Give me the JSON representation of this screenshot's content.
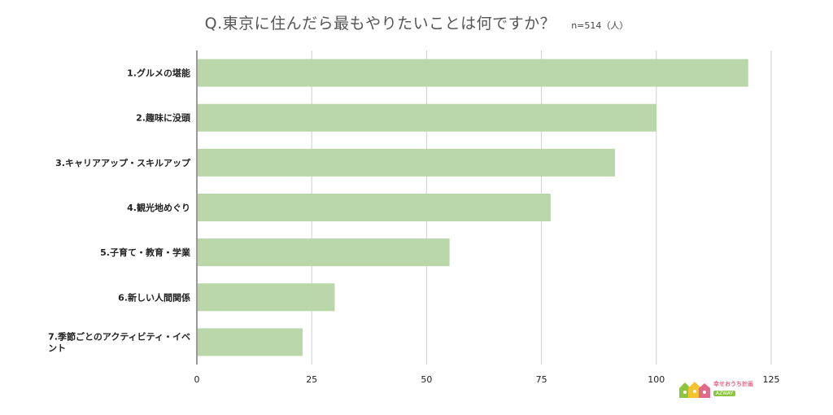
{
  "header": {
    "question": "Q.東京に住んだら最もやりたいことは何ですか？",
    "sample": "n=514（人）"
  },
  "logo": {
    "line1": "幸せおうち計画",
    "line2": "AZWAY"
  },
  "colors": {
    "bar": "#b9d7a8",
    "grid": "#cfcfcf",
    "axis": "#333333"
  },
  "chart_data": {
    "type": "bar",
    "orientation": "horizontal",
    "title": "Q.東京に住んだら最もやりたいことは何ですか？",
    "categories": [
      "1.グルメの堪能",
      "2.趣味に没頭",
      "3.キャリアアップ・スキルアップ",
      "4.観光地めぐり",
      "5.子育て・教育・学業",
      "6.新しい人間関係",
      "7.季節ごとのアクティビティ・イベント"
    ],
    "values": [
      120,
      100,
      91,
      77,
      55,
      30,
      23
    ],
    "xlim": [
      0,
      125
    ],
    "xticks": [
      0,
      25,
      50,
      75,
      100,
      125
    ],
    "grid": true,
    "legend": "none"
  }
}
